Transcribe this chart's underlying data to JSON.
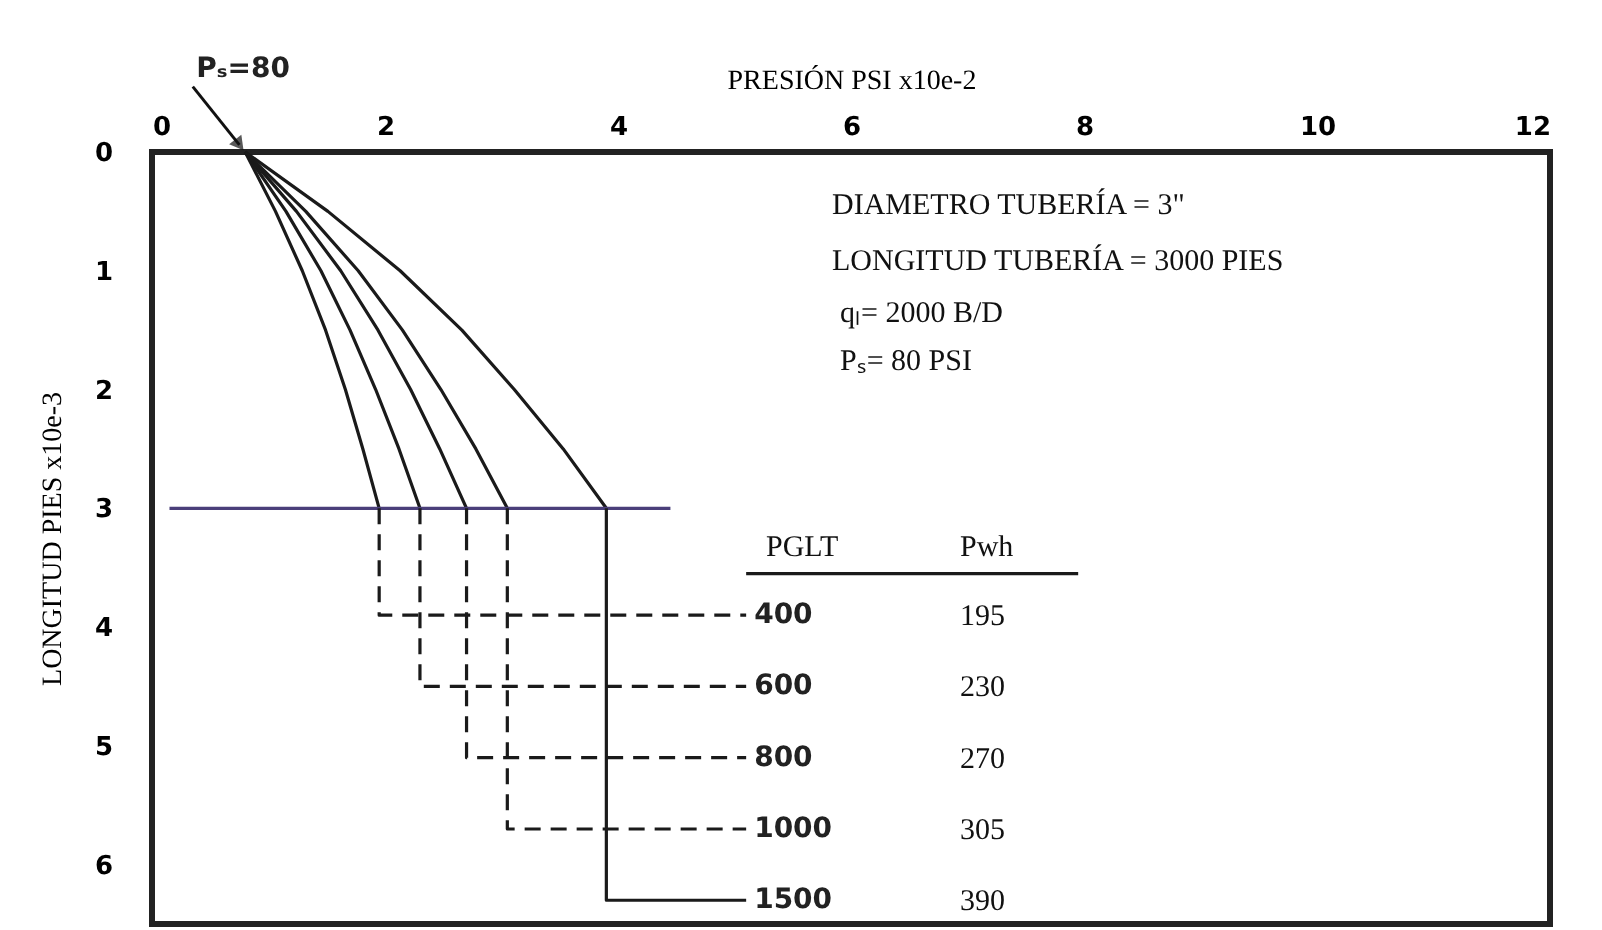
{
  "chart_data": {
    "type": "line",
    "xlabel": "PRESIÓN PSI x10e-2",
    "ylabel": "LONGITUD PIES x10e-3",
    "xlim": [
      0,
      12
    ],
    "ylim": [
      6.5,
      0
    ],
    "xticks": [
      0,
      2,
      4,
      6,
      8,
      10,
      12
    ],
    "yticks": [
      0,
      1,
      2,
      3,
      4,
      5,
      6
    ],
    "series": [
      {
        "color": "#1a1a1a",
        "line_style": "solid",
        "x": [
          0.8,
          1.06,
          1.29,
          1.49,
          1.66,
          1.81,
          1.95
        ],
        "values": [
          0,
          0.5,
          1,
          1.5,
          2,
          2.5,
          3
        ]
      },
      {
        "color": "#1a1a1a",
        "line_style": "solid",
        "x": [
          0.8,
          1.15,
          1.45,
          1.7,
          1.92,
          2.12,
          2.3
        ],
        "values": [
          0,
          0.5,
          1,
          1.5,
          2,
          2.5,
          3
        ]
      },
      {
        "color": "#1a1a1a",
        "line_style": "solid",
        "x": [
          0.8,
          1.24,
          1.62,
          1.94,
          2.22,
          2.47,
          2.7
        ],
        "values": [
          0,
          0.5,
          1,
          1.5,
          2,
          2.5,
          3
        ]
      },
      {
        "color": "#1a1a1a",
        "line_style": "solid",
        "x": [
          0.8,
          1.32,
          1.77,
          2.15,
          2.48,
          2.78,
          3.05
        ],
        "values": [
          0,
          0.5,
          1,
          1.5,
          2,
          2.5,
          3
        ]
      },
      {
        "color": "#1a1a1a",
        "line_style": "solid",
        "x": [
          0.8,
          1.51,
          2.13,
          2.66,
          3.11,
          3.53,
          3.9
        ],
        "values": [
          0,
          0.5,
          1,
          1.5,
          2,
          2.5,
          3
        ]
      },
      {
        "color": "#4a3f7a",
        "line_style": "solid",
        "x": [
          0.15,
          4.45
        ],
        "values": [
          3,
          3
        ]
      },
      {
        "name": "400",
        "color": "#1a1a1a",
        "line_style": "dashed",
        "x": [
          1.95,
          1.95,
          5.1
        ],
        "values": [
          3,
          3.9,
          3.9
        ]
      },
      {
        "name": "600",
        "color": "#1a1a1a",
        "line_style": "dashed",
        "x": [
          2.3,
          2.3,
          5.1
        ],
        "values": [
          3,
          4.5,
          4.5
        ]
      },
      {
        "name": "800",
        "color": "#1a1a1a",
        "line_style": "dashed",
        "x": [
          2.7,
          2.7,
          5.1
        ],
        "values": [
          3,
          5.1,
          5.1
        ]
      },
      {
        "name": "1000",
        "color": "#1a1a1a",
        "line_style": "dashed",
        "x": [
          3.05,
          3.05,
          5.1
        ],
        "values": [
          3,
          5.7,
          5.7
        ]
      },
      {
        "name": "1500",
        "color": "#1a1a1a",
        "line_style": "solid",
        "x": [
          3.9,
          3.9,
          5.1
        ],
        "values": [
          3,
          6.3,
          6.3
        ]
      },
      {
        "color": "#1a1a1a",
        "line_style": "solid",
        "x": [
          5.1,
          7.95
        ],
        "values": [
          3.55,
          3.55
        ]
      }
    ],
    "annotations": [
      {
        "text": "Pₛ=80",
        "x": 0.8,
        "y": 0
      },
      "DIAMETRO TUBERÍA = 3\"",
      "LONGITUD TUBERÍA = 3000 PIES",
      "qₗ= 2000 B/D",
      "Pₛ= 80 PSI",
      "PGLT",
      "Pwh",
      "195",
      "230",
      "270",
      "305",
      "390"
    ]
  }
}
